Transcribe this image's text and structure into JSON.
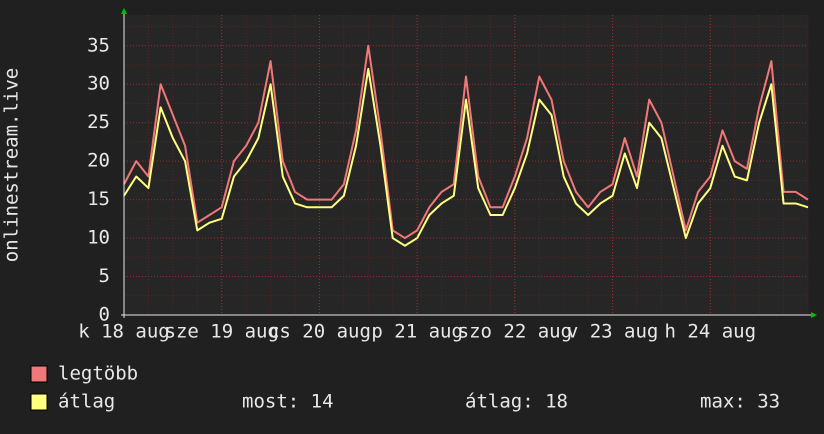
{
  "chart_data": {
    "type": "line",
    "ylabel": "onlinestream.live",
    "x": [
      0,
      3,
      6,
      9,
      12,
      15,
      18,
      21,
      24,
      27,
      30,
      33,
      36,
      39,
      42,
      45,
      48,
      51,
      54,
      57,
      60,
      63,
      66,
      69,
      72,
      75,
      78,
      81,
      84,
      87,
      90,
      93,
      96,
      99,
      102,
      105,
      108,
      111,
      114,
      117,
      120,
      123,
      126,
      129,
      132,
      135,
      138,
      141,
      144,
      147,
      150,
      153,
      156,
      159,
      162,
      165,
      168
    ],
    "xlim": [
      0,
      168
    ],
    "xticks": [
      {
        "value": 0,
        "label": "k 18 aug"
      },
      {
        "value": 24,
        "label": "sze 19 aug"
      },
      {
        "value": 48,
        "label": "cs 20 aug"
      },
      {
        "value": 72,
        "label": "p 21 aug"
      },
      {
        "value": 96,
        "label": "szo 22 aug"
      },
      {
        "value": 120,
        "label": "v 23 aug"
      },
      {
        "value": 144,
        "label": "h 24 aug"
      }
    ],
    "ylim": [
      0,
      39
    ],
    "yticks": [
      0,
      5,
      10,
      15,
      20,
      25,
      30,
      35
    ],
    "grid": true,
    "series": [
      {
        "name": "legtöbb",
        "color": "#f07878",
        "values": [
          17,
          20,
          18,
          30,
          26,
          22,
          12,
          13,
          14,
          20,
          22,
          25,
          33,
          20,
          16,
          15,
          15,
          15,
          17,
          24,
          35,
          24,
          11,
          10,
          11,
          14,
          16,
          17,
          31,
          18,
          14,
          14,
          18,
          23,
          31,
          28,
          20,
          16,
          14,
          16,
          17,
          23,
          18,
          28,
          25,
          18,
          11,
          16,
          18,
          24,
          20,
          19,
          27,
          33,
          16,
          16,
          15
        ]
      },
      {
        "name": "átlag",
        "color": "#ffff80",
        "values": [
          15.5,
          18,
          16.5,
          27,
          23,
          20,
          11,
          12,
          12.5,
          18,
          20,
          23,
          30,
          18,
          14.5,
          14,
          14,
          14,
          15.5,
          22,
          32,
          22,
          10,
          9,
          10,
          13,
          14.5,
          15.5,
          28,
          16.5,
          13,
          13,
          16.5,
          21,
          28,
          26,
          18,
          14.5,
          13,
          14.5,
          15.5,
          21,
          16.5,
          25,
          23,
          16.5,
          10,
          14.5,
          16.5,
          22,
          18,
          17.5,
          25,
          30,
          14.5,
          14.5,
          14
        ]
      }
    ],
    "stats": [
      "most: 14",
      "átlag: 18",
      "max: 33"
    ]
  }
}
